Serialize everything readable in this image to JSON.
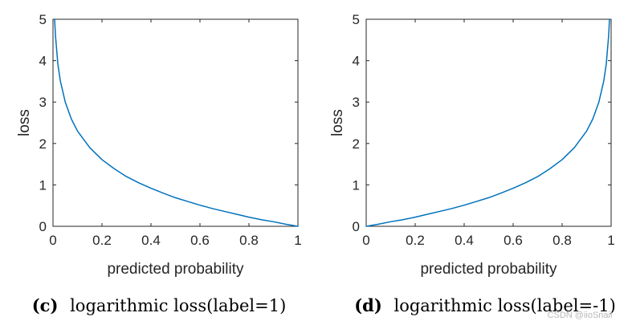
{
  "chart_data": [
    {
      "type": "line",
      "caption_label": "(c)",
      "caption_text": "logarithmic loss(label=1)",
      "xlabel": "predicted probability",
      "ylabel": "loss",
      "xlim": [
        0,
        1
      ],
      "ylim": [
        0,
        5
      ],
      "xticks": [
        "0",
        "0.2",
        "0.4",
        "0.6",
        "0.8",
        "1"
      ],
      "yticks": [
        "0",
        "1",
        "2",
        "3",
        "4",
        "5"
      ],
      "grid": false,
      "line_color": "#0072BD",
      "series": [
        {
          "x": [
            0.0067,
            0.01,
            0.02,
            0.03,
            0.05,
            0.075,
            0.1,
            0.15,
            0.2,
            0.25,
            0.3,
            0.35,
            0.4,
            0.45,
            0.5,
            0.55,
            0.6,
            0.65,
            0.7,
            0.75,
            0.8,
            0.85,
            0.9,
            0.95,
            1.0
          ],
          "y": [
            5.0,
            4.61,
            3.91,
            3.51,
            3.0,
            2.59,
            2.3,
            1.9,
            1.61,
            1.39,
            1.2,
            1.05,
            0.92,
            0.8,
            0.69,
            0.6,
            0.51,
            0.43,
            0.36,
            0.29,
            0.22,
            0.16,
            0.11,
            0.05,
            0.0
          ]
        }
      ]
    },
    {
      "type": "line",
      "caption_label": "(d)",
      "caption_text": "logarithmic loss(label=-1)",
      "xlabel": "predicted probability",
      "ylabel": "loss",
      "xlim": [
        0,
        1
      ],
      "ylim": [
        0,
        5
      ],
      "xticks": [
        "0",
        "0.2",
        "0.4",
        "0.6",
        "0.8",
        "1"
      ],
      "yticks": [
        "0",
        "1",
        "2",
        "3",
        "4",
        "5"
      ],
      "grid": false,
      "line_color": "#0072BD",
      "series": [
        {
          "x": [
            0.0,
            0.05,
            0.1,
            0.15,
            0.2,
            0.25,
            0.3,
            0.35,
            0.4,
            0.45,
            0.5,
            0.55,
            0.6,
            0.65,
            0.7,
            0.75,
            0.8,
            0.85,
            0.9,
            0.925,
            0.95,
            0.97,
            0.98,
            0.99,
            0.9933
          ],
          "y": [
            0.0,
            0.05,
            0.11,
            0.16,
            0.22,
            0.29,
            0.36,
            0.43,
            0.51,
            0.6,
            0.69,
            0.8,
            0.92,
            1.05,
            1.2,
            1.39,
            1.61,
            1.9,
            2.3,
            2.59,
            3.0,
            3.51,
            3.91,
            4.61,
            5.0
          ]
        }
      ]
    }
  ],
  "watermark": "CSDN @iioSnail"
}
